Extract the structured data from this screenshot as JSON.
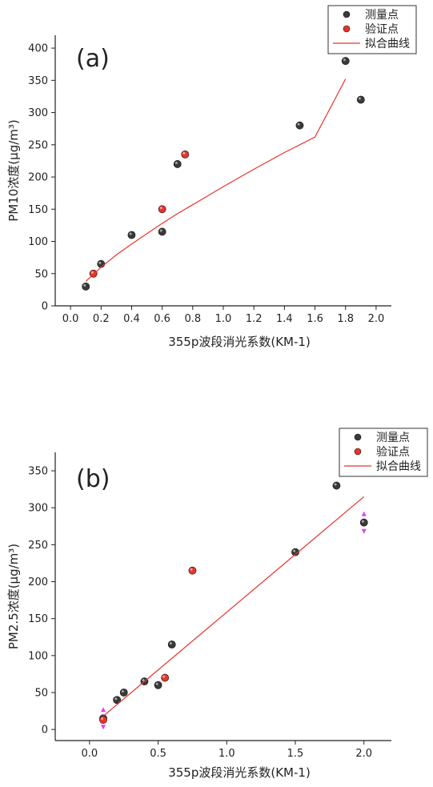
{
  "chart_data": [
    {
      "type": "scatter",
      "panel_label": "(a)",
      "xlabel": "355p波段消光系数(KM-1)",
      "ylabel": "PM10浓度(μg/m³)",
      "xlim": [
        -0.1,
        2.1
      ],
      "ylim": [
        0,
        420
      ],
      "xticks": [
        0.0,
        0.2,
        0.4,
        0.6,
        0.8,
        1.0,
        1.2,
        1.4,
        1.6,
        1.8,
        2.0
      ],
      "xtick_labels": [
        "0.0",
        "0.2",
        "0.4",
        "0.6",
        "0.8",
        "1.0",
        "1.2",
        "1.4",
        "1.6",
        "1.8",
        "2.0"
      ],
      "yticks": [
        0,
        50,
        100,
        150,
        200,
        250,
        300,
        350,
        400
      ],
      "ytick_labels": [
        "0",
        "50",
        "100",
        "150",
        "200",
        "250",
        "300",
        "350",
        "400"
      ],
      "legend": {
        "placement": "top-right",
        "entries": [
          "测量点",
          "验证点",
          "拟合曲线"
        ]
      },
      "series": [
        {
          "name": "测量点",
          "kind": "scatter",
          "color": "#3a3a3a",
          "points": [
            [
              0.1,
              30
            ],
            [
              0.2,
              65
            ],
            [
              0.4,
              110
            ],
            [
              0.6,
              115
            ],
            [
              0.7,
              220
            ],
            [
              1.5,
              280
            ],
            [
              1.8,
              380
            ],
            [
              1.9,
              320
            ]
          ]
        },
        {
          "name": "验证点",
          "kind": "scatter",
          "color": "#e8342c",
          "points": [
            [
              0.15,
              50
            ],
            [
              0.6,
              150
            ],
            [
              0.75,
              235
            ]
          ]
        },
        {
          "name": "拟合曲线",
          "kind": "line",
          "color": "#e8342c",
          "points": [
            [
              0.1,
              38
            ],
            [
              0.2,
              60
            ],
            [
              0.3,
              79
            ],
            [
              0.4,
              96
            ],
            [
              0.5,
              112
            ],
            [
              0.6,
              128
            ],
            [
              0.7,
              143
            ],
            [
              0.8,
              157
            ],
            [
              1.0,
              185
            ],
            [
              1.2,
              212
            ],
            [
              1.4,
              238
            ],
            [
              1.6,
              262
            ],
            [
              1.8,
              352
            ]
          ]
        }
      ]
    },
    {
      "type": "scatter",
      "panel_label": "(b)",
      "xlabel": "355p波段消光系数(KM-1)",
      "ylabel": "PM2.5浓度(μg/m³)",
      "xlim": [
        -0.25,
        2.2
      ],
      "ylim": [
        -15,
        375
      ],
      "xticks": [
        0.0,
        0.5,
        1.0,
        1.5,
        2.0
      ],
      "xtick_labels": [
        "0.0",
        "0.5",
        "1.0",
        "1.5",
        "2.0"
      ],
      "yticks": [
        0,
        50,
        100,
        150,
        200,
        250,
        300,
        350
      ],
      "ytick_labels": [
        "0",
        "50",
        "100",
        "150",
        "200",
        "250",
        "300",
        "350"
      ],
      "legend": {
        "placement": "top-right",
        "entries": [
          "测量点",
          "验证点",
          "拟合曲线"
        ]
      },
      "series": [
        {
          "name": "测量点",
          "kind": "scatter",
          "color": "#3a3a3a",
          "points": [
            [
              0.1,
              15
            ],
            [
              0.2,
              40
            ],
            [
              0.25,
              50
            ],
            [
              0.4,
              65
            ],
            [
              0.5,
              60
            ],
            [
              0.6,
              115
            ],
            [
              1.5,
              240
            ],
            [
              1.8,
              330
            ],
            [
              2.0,
              280
            ]
          ]
        },
        {
          "name": "验证点",
          "kind": "scatter",
          "color": "#e8342c",
          "points": [
            [
              0.1,
              13
            ],
            [
              0.55,
              70
            ],
            [
              0.75,
              215
            ]
          ]
        },
        {
          "name": "拟合曲线",
          "kind": "line",
          "color": "#e8342c",
          "points": [
            [
              0.1,
              18
            ],
            [
              2.0,
              315
            ]
          ]
        }
      ],
      "markers": [
        {
          "x": 0.1,
          "y": 15,
          "color": "#e040fb",
          "shape": "double-arrow"
        },
        {
          "x": 2.0,
          "y": 280,
          "color": "#e040fb",
          "shape": "double-arrow"
        }
      ]
    }
  ]
}
